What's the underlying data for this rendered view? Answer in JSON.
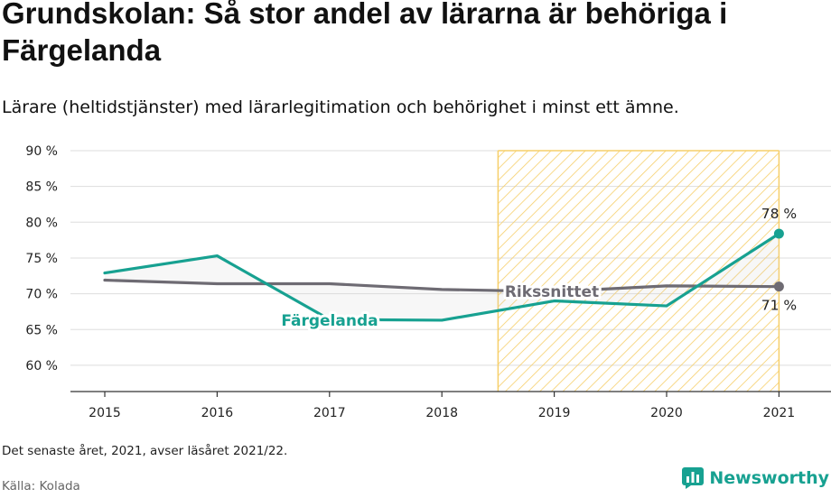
{
  "title": "Grundskolan: Så stor andel av lärarna är behöriga i Färgelanda",
  "subtitle": "Lärare (heltidstjänster) med lärarlegitimation och behörighet i minst ett ämne.",
  "note": "Det senaste året, 2021, avser läsåret 2021/22.",
  "source": "Källa: Kolada",
  "brand": "Newsworthy",
  "colors": {
    "fargelanda": "#17a191",
    "rikssnittet": "#6e6b73",
    "highlight": "#f6cf6a",
    "grid": "#dddddd"
  },
  "chart_data": {
    "type": "line",
    "categories": [
      "2015",
      "2016",
      "2017",
      "2018",
      "2019",
      "2020",
      "2021"
    ],
    "ylim": [
      55,
      90
    ],
    "yticks": [
      60,
      65,
      70,
      75,
      80,
      85,
      90
    ],
    "ytick_labels": [
      "60 %",
      "65 %",
      "70 %",
      "75 %",
      "80 %",
      "85 %",
      "90 %"
    ],
    "highlight_range": [
      "2019",
      "2021"
    ],
    "series": [
      {
        "name": "Färgelanda",
        "values": [
          72.9,
          75.3,
          66.4,
          66.3,
          69.0,
          68.3,
          78.4
        ],
        "end_label": "78 %"
      },
      {
        "name": "Rikssnittet",
        "values": [
          71.9,
          71.4,
          71.4,
          70.6,
          70.3,
          71.1,
          71.0
        ],
        "end_label": "71 %"
      }
    ]
  }
}
